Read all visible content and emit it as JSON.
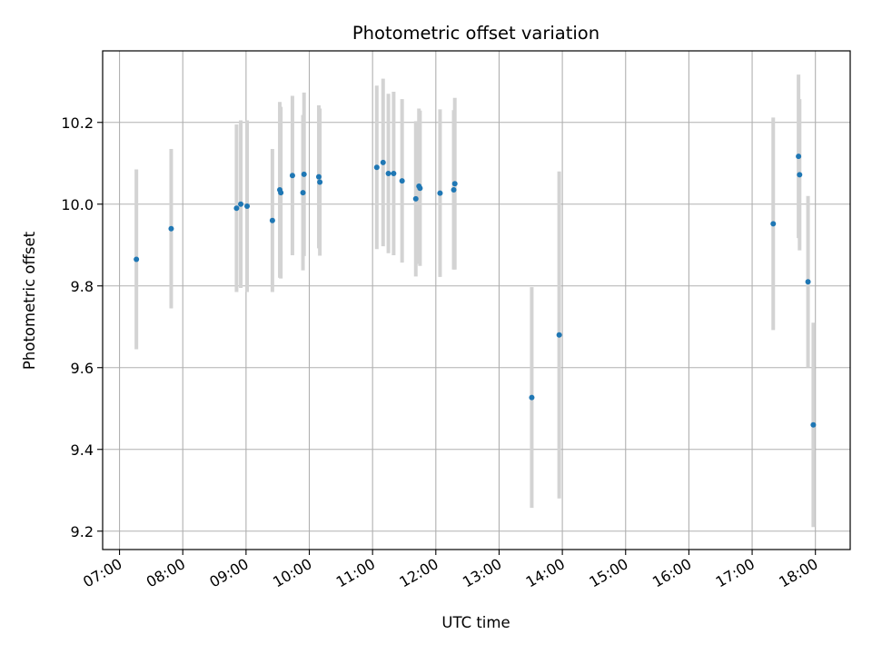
{
  "chart_data": {
    "type": "scatter",
    "title": "Photometric offset variation",
    "xlabel": "UTC time",
    "ylabel": "Photometric offset",
    "xlim": [
      "06:44",
      "18:33"
    ],
    "ylim": [
      9.155,
      10.375
    ],
    "grid": true,
    "x_ticks": [
      "07:00",
      "08:00",
      "09:00",
      "10:00",
      "11:00",
      "12:00",
      "13:00",
      "14:00",
      "15:00",
      "16:00",
      "17:00",
      "18:00"
    ],
    "y_ticks": [
      9.2,
      9.4,
      9.6,
      9.8,
      10.0,
      10.2
    ],
    "y_tick_labels": [
      "9.2",
      "9.4",
      "9.6",
      "9.8",
      "10.0",
      "10.2"
    ],
    "colors": {
      "point": "#1f77b4",
      "errorbar": "#d3d3d3",
      "grid": "#b0b0b0"
    },
    "points": [
      {
        "x": "07:16",
        "y": 9.865,
        "err": 0.22
      },
      {
        "x": "07:49",
        "y": 9.94,
        "err": 0.195
      },
      {
        "x": "08:51",
        "y": 9.99,
        "err": 0.205
      },
      {
        "x": "08:55",
        "y": 10.0,
        "err": 0.205
      },
      {
        "x": "09:01",
        "y": 9.995,
        "err": 0.21
      },
      {
        "x": "09:25",
        "y": 9.96,
        "err": 0.175
      },
      {
        "x": "09:32",
        "y": 10.035,
        "err": 0.215
      },
      {
        "x": "09:33",
        "y": 10.028,
        "err": 0.21
      },
      {
        "x": "09:44",
        "y": 10.07,
        "err": 0.195
      },
      {
        "x": "09:54",
        "y": 10.028,
        "err": 0.19
      },
      {
        "x": "09:55",
        "y": 10.073,
        "err": 0.2
      },
      {
        "x": "10:09",
        "y": 10.067,
        "err": 0.175
      },
      {
        "x": "10:10",
        "y": 10.054,
        "err": 0.18
      },
      {
        "x": "11:04",
        "y": 10.09,
        "err": 0.2
      },
      {
        "x": "11:10",
        "y": 10.102,
        "err": 0.205
      },
      {
        "x": "11:15",
        "y": 10.075,
        "err": 0.195
      },
      {
        "x": "11:20",
        "y": 10.075,
        "err": 0.2
      },
      {
        "x": "11:28",
        "y": 10.057,
        "err": 0.2
      },
      {
        "x": "11:41",
        "y": 10.013,
        "err": 0.19
      },
      {
        "x": "11:44",
        "y": 10.044,
        "err": 0.19
      },
      {
        "x": "11:45",
        "y": 10.039,
        "err": 0.19
      },
      {
        "x": "12:04",
        "y": 10.027,
        "err": 0.205
      },
      {
        "x": "12:17",
        "y": 10.035,
        "err": 0.195
      },
      {
        "x": "12:18",
        "y": 10.05,
        "err": 0.21
      },
      {
        "x": "13:31",
        "y": 9.527,
        "err": 0.27
      },
      {
        "x": "13:57",
        "y": 9.68,
        "err": 0.4
      },
      {
        "x": "17:20",
        "y": 9.952,
        "err": 0.26
      },
      {
        "x": "17:44",
        "y": 10.117,
        "err": 0.2
      },
      {
        "x": "17:45",
        "y": 10.072,
        "err": 0.185
      },
      {
        "x": "17:53",
        "y": 9.81,
        "err": 0.21
      },
      {
        "x": "17:58",
        "y": 9.46,
        "err": 0.25
      }
    ]
  }
}
